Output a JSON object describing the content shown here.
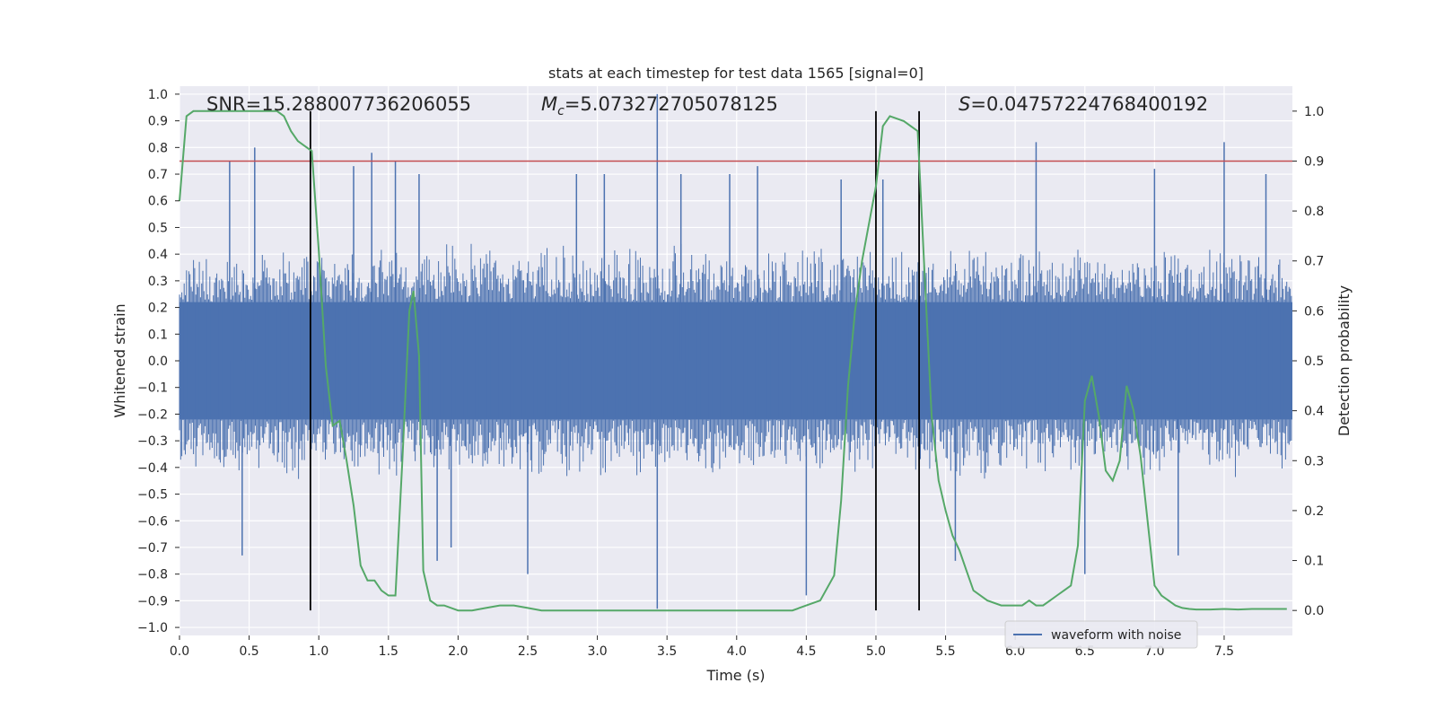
{
  "chart_data": {
    "type": "line",
    "title": "stats at each timestep for test data 1565 [signal=0]",
    "xlabel": "Time (s)",
    "ylabel": "Whitened strain",
    "ylabel_right": "Detection probability",
    "xlim": [
      0.0,
      7.99
    ],
    "ylim": [
      -1.03,
      1.03
    ],
    "ylim_right": [
      -0.05,
      1.05
    ],
    "x_ticks": [
      0.0,
      0.5,
      1.0,
      1.5,
      2.0,
      2.5,
      3.0,
      3.5,
      4.0,
      4.5,
      5.0,
      5.5,
      6.0,
      6.5,
      7.0,
      7.5
    ],
    "x_tick_labels": [
      "0.0",
      "0.5",
      "1.0",
      "1.5",
      "2.0",
      "2.5",
      "3.0",
      "3.5",
      "4.0",
      "4.5",
      "5.0",
      "5.5",
      "6.0",
      "6.5",
      "7.0",
      "7.5"
    ],
    "y_ticks": [
      1.0,
      0.9,
      0.8,
      0.7,
      0.6,
      0.5,
      0.4,
      0.3,
      0.2,
      0.1,
      0.0,
      -0.1,
      -0.2,
      -0.3,
      -0.4,
      -0.5,
      -0.6,
      -0.7,
      -0.8,
      -0.9,
      -1.0
    ],
    "y_tick_labels": [
      "1.0",
      "0.9",
      "0.8",
      "0.7",
      "0.6",
      "0.5",
      "0.4",
      "0.3",
      "0.2",
      "0.1",
      "0.0",
      "−0.1",
      "−0.2",
      "−0.3",
      "−0.4",
      "−0.5",
      "−0.6",
      "−0.7",
      "−0.8",
      "−0.9",
      "−1.0"
    ],
    "y_right_ticks": [
      1.0,
      0.9,
      0.8,
      0.7,
      0.6,
      0.5,
      0.4,
      0.3,
      0.2,
      0.1,
      0.0
    ],
    "y_right_tick_labels": [
      "1.0",
      "0.9",
      "0.8",
      "0.7",
      "0.6",
      "0.5",
      "0.4",
      "0.3",
      "0.2",
      "0.1",
      "0.0"
    ],
    "grid": true,
    "legend": {
      "location": "lower-right",
      "entries": [
        "waveform with noise"
      ]
    },
    "annotations": {
      "snr": "SNR=15.288007736206055",
      "mc_symbol": "M",
      "mc_sub": "c",
      "mc_value": "=5.073272705078125",
      "s_symbol": "S",
      "s_value": "=0.04757224768400192"
    },
    "threshold_right": 0.9,
    "vertical_lines_x": [
      0.94,
      5.0,
      5.31
    ],
    "series": [
      {
        "name": "waveform with noise",
        "axis": "left",
        "color": "#4c72b0",
        "core_envelope": 0.22,
        "typical_peak": 0.45,
        "notable_peaks": [
          {
            "x": 0.36,
            "y": 0.75
          },
          {
            "x": 0.54,
            "y": 0.8
          },
          {
            "x": 0.45,
            "y": -0.73
          },
          {
            "x": 1.25,
            "y": 0.73
          },
          {
            "x": 1.38,
            "y": 0.78
          },
          {
            "x": 1.55,
            "y": 0.75
          },
          {
            "x": 1.72,
            "y": 0.7
          },
          {
            "x": 1.85,
            "y": -0.75
          },
          {
            "x": 1.95,
            "y": -0.7
          },
          {
            "x": 2.5,
            "y": -0.8
          },
          {
            "x": 2.85,
            "y": 0.7
          },
          {
            "x": 3.05,
            "y": 0.7
          },
          {
            "x": 3.43,
            "y": 1.0
          },
          {
            "x": 3.43,
            "y": -0.93
          },
          {
            "x": 3.6,
            "y": 0.7
          },
          {
            "x": 3.95,
            "y": 0.7
          },
          {
            "x": 4.15,
            "y": 0.73
          },
          {
            "x": 4.5,
            "y": -0.88
          },
          {
            "x": 4.75,
            "y": 0.68
          },
          {
            "x": 5.05,
            "y": 0.68
          },
          {
            "x": 5.57,
            "y": -0.75
          },
          {
            "x": 6.15,
            "y": 0.82
          },
          {
            "x": 6.5,
            "y": -0.8
          },
          {
            "x": 7.0,
            "y": 0.72
          },
          {
            "x": 7.17,
            "y": -0.73
          },
          {
            "x": 7.5,
            "y": 0.82
          },
          {
            "x": 7.8,
            "y": 0.7
          }
        ]
      },
      {
        "name": "",
        "axis": "right",
        "color": "#55a868",
        "x": [
          0.0,
          0.05,
          0.1,
          0.15,
          0.2,
          0.3,
          0.4,
          0.5,
          0.6,
          0.7,
          0.75,
          0.8,
          0.85,
          0.9,
          0.95,
          1.0,
          1.05,
          1.1,
          1.15,
          1.2,
          1.25,
          1.3,
          1.35,
          1.4,
          1.45,
          1.5,
          1.55,
          1.6,
          1.65,
          1.68,
          1.72,
          1.75,
          1.8,
          1.85,
          1.9,
          2.0,
          2.1,
          2.2,
          2.3,
          2.4,
          2.5,
          2.6,
          2.8,
          3.0,
          3.2,
          3.4,
          3.5,
          3.6,
          3.8,
          4.0,
          4.2,
          4.4,
          4.5,
          4.6,
          4.7,
          4.75,
          4.8,
          4.85,
          4.9,
          5.0,
          5.05,
          5.1,
          5.2,
          5.3,
          5.35,
          5.4,
          5.45,
          5.5,
          5.55,
          5.6,
          5.65,
          5.7,
          5.8,
          5.9,
          6.0,
          6.05,
          6.1,
          6.15,
          6.2,
          6.25,
          6.3,
          6.35,
          6.4,
          6.45,
          6.5,
          6.55,
          6.6,
          6.65,
          6.7,
          6.75,
          6.8,
          6.85,
          6.9,
          6.95,
          7.0,
          7.05,
          7.1,
          7.15,
          7.2,
          7.25,
          7.3,
          7.4,
          7.5,
          7.6,
          7.7,
          7.8,
          7.95
        ],
        "y": [
          0.82,
          0.99,
          1.0,
          1.0,
          1.0,
          1.0,
          1.0,
          1.0,
          1.0,
          1.0,
          0.99,
          0.96,
          0.94,
          0.93,
          0.92,
          0.72,
          0.49,
          0.37,
          0.38,
          0.3,
          0.21,
          0.09,
          0.06,
          0.06,
          0.04,
          0.03,
          0.03,
          0.3,
          0.6,
          0.64,
          0.51,
          0.08,
          0.02,
          0.01,
          0.01,
          0.0,
          0.0,
          0.005,
          0.01,
          0.01,
          0.005,
          0.0,
          0.0,
          0.0,
          0.0,
          0.0,
          0.0,
          0.0,
          0.0,
          0.0,
          0.0,
          0.0,
          0.01,
          0.02,
          0.07,
          0.22,
          0.45,
          0.6,
          0.7,
          0.85,
          0.97,
          0.99,
          0.98,
          0.96,
          0.67,
          0.39,
          0.26,
          0.2,
          0.15,
          0.12,
          0.08,
          0.04,
          0.02,
          0.01,
          0.01,
          0.01,
          0.02,
          0.01,
          0.01,
          0.02,
          0.03,
          0.04,
          0.05,
          0.13,
          0.42,
          0.47,
          0.39,
          0.28,
          0.26,
          0.3,
          0.45,
          0.4,
          0.31,
          0.18,
          0.05,
          0.03,
          0.02,
          0.01,
          0.005,
          0.003,
          0.002,
          0.002,
          0.003,
          0.002,
          0.003,
          0.003,
          0.003
        ]
      }
    ],
    "colors": {
      "plot_background": "#eaeaf2",
      "grid": "#ffffff",
      "waveform": "#4c72b0",
      "probability": "#55a868",
      "threshold": "#c44e52",
      "marker_lines": "#000000"
    }
  }
}
